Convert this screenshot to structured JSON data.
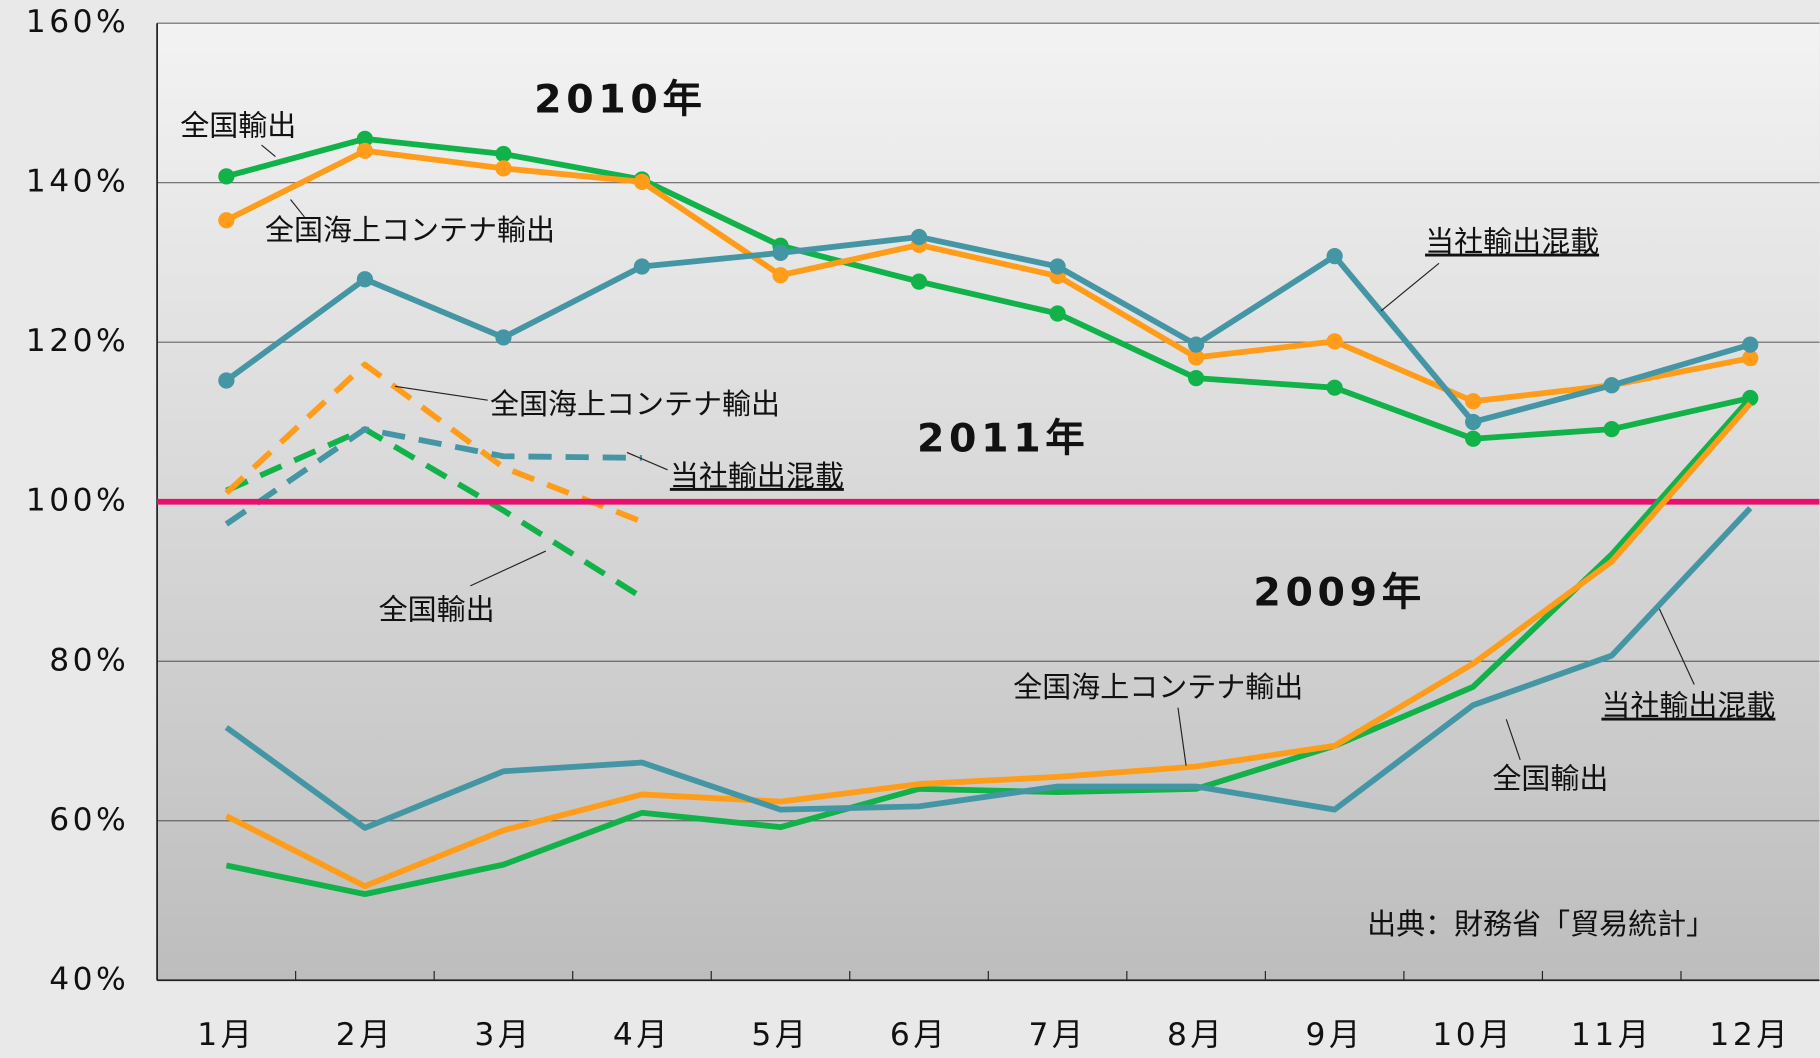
{
  "chart_data": {
    "type": "line",
    "categories": [
      "1月",
      "2月",
      "3月",
      "4月",
      "5月",
      "6月",
      "7月",
      "8月",
      "9月",
      "10月",
      "11月",
      "12月"
    ],
    "ylim": [
      40,
      160
    ],
    "yticks": [
      {
        "value": 40,
        "label": "40%"
      },
      {
        "value": 60,
        "label": "60%"
      },
      {
        "value": 80,
        "label": "80%"
      },
      {
        "value": 100,
        "label": "100%"
      },
      {
        "value": 120,
        "label": "120%"
      },
      {
        "value": 140,
        "label": "140%"
      },
      {
        "value": 160,
        "label": "160%"
      }
    ],
    "grid": true,
    "reference_line": {
      "value": 100,
      "color": "#ec0e6e"
    },
    "series": [
      {
        "name": "全国輸出",
        "color": "#12b24a",
        "markers": true,
        "dashed": false,
        "values": [
          140.8,
          145.5,
          143.6,
          140.4,
          132.1,
          127.6,
          123.6,
          115.5,
          114.3,
          107.9,
          109.1,
          113.0
        ]
      },
      {
        "name": "全国海上コンテナ輸出",
        "color": "#ff9d1a",
        "markers": true,
        "dashed": false,
        "values": [
          135.3,
          144.0,
          141.8,
          140.1,
          128.4,
          132.2,
          128.3,
          118.1,
          120.1,
          112.6,
          114.6,
          118.0
        ]
      },
      {
        "name": "当社輸出混載",
        "color": "#4596a4",
        "markers": true,
        "dashed": false,
        "values": [
          115.2,
          127.9,
          120.6,
          129.5,
          131.2,
          133.2,
          129.5,
          119.7,
          130.8,
          110.0,
          114.6,
          119.7
        ]
      },
      {
        "name": "全国輸出",
        "color": "#12b24a",
        "markers": false,
        "dashed": true,
        "values": [
          101.4,
          109.1,
          98.9,
          88.0,
          null,
          null,
          null,
          null,
          null,
          null,
          null,
          null
        ]
      },
      {
        "name": "全国海上コンテナ輸出",
        "color": "#ff9d1a",
        "markers": false,
        "dashed": true,
        "values": [
          101.1,
          117.2,
          104.3,
          97.5,
          null,
          null,
          null,
          null,
          null,
          null,
          null,
          null
        ]
      },
      {
        "name": "当社輸出混載",
        "color": "#4596a4",
        "markers": false,
        "dashed": true,
        "values": [
          97.2,
          109.1,
          105.7,
          105.5,
          null,
          null,
          null,
          null,
          null,
          null,
          null,
          null
        ]
      },
      {
        "name": "全国輸出",
        "color": "#12b24a",
        "markers": false,
        "dashed": false,
        "values": [
          54.4,
          50.8,
          54.5,
          61.0,
          59.2,
          64.0,
          63.6,
          64.0,
          69.4,
          76.8,
          93.4,
          113.0
        ]
      },
      {
        "name": "全国海上コンテナ輸出",
        "color": "#ff9d1a",
        "markers": false,
        "dashed": false,
        "values": [
          60.6,
          51.8,
          58.8,
          63.3,
          62.4,
          64.6,
          65.5,
          66.8,
          69.4,
          79.7,
          92.5,
          112.3
        ]
      },
      {
        "name": "当社輸出混載",
        "color": "#4596a4",
        "markers": false,
        "dashed": false,
        "values": [
          71.7,
          59.1,
          66.2,
          67.3,
          61.4,
          61.8,
          64.3,
          64.3,
          61.4,
          74.5,
          80.7,
          99.2
        ]
      }
    ],
    "annotations": [
      "2010年",
      "2011年",
      "2009年",
      "出典：財務省「貿易統計」"
    ]
  }
}
